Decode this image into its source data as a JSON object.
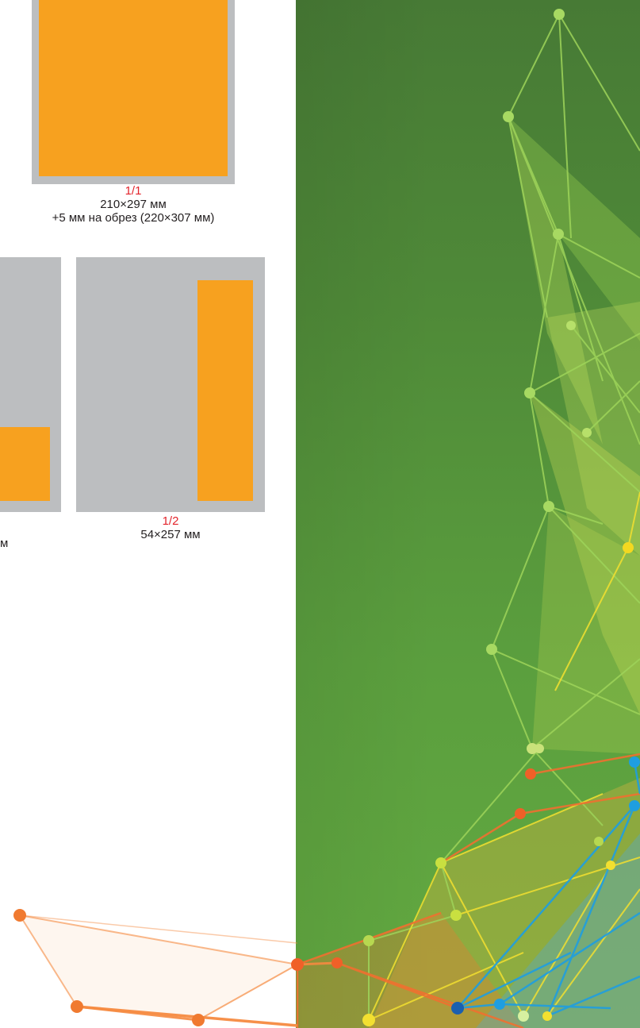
{
  "ads": {
    "full_page": {
      "label": "1/1",
      "size": "210×297 мм",
      "bleed": "+5 мм на обрез (220×307 мм)"
    },
    "partial": {
      "size_fragment": "м"
    },
    "half_vertical": {
      "label": "1/2",
      "size": "54×257 мм"
    }
  },
  "colors": {
    "ad_fill": "#f7a11f",
    "page_frame": "#bcbec0",
    "label_red": "#e3242b",
    "panel_green_top": "#477a35",
    "panel_green_bottom": "#63aa41"
  }
}
